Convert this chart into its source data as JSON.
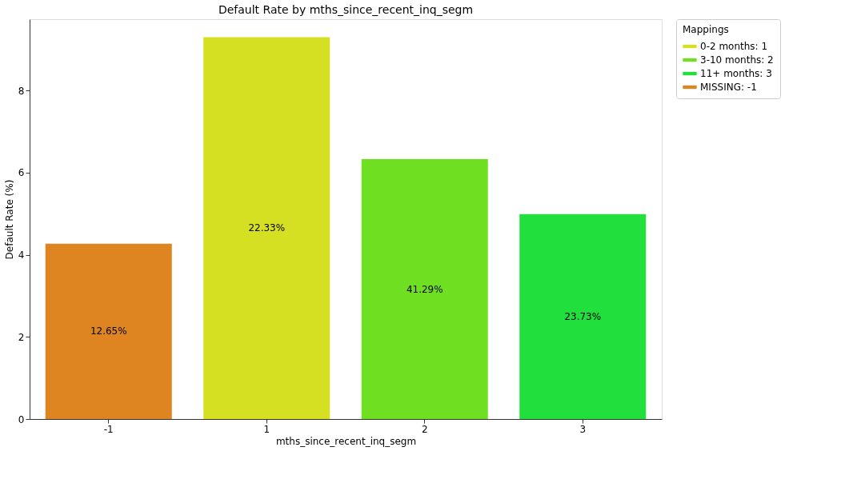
{
  "chart_data": {
    "type": "bar",
    "title": "Default Rate by mths_since_recent_inq_segm",
    "xlabel": "mths_since_recent_inq_segm",
    "ylabel": "Default Rate (%)",
    "legend_title": "Mappings",
    "categories": [
      "-1",
      "1",
      "2",
      "3"
    ],
    "series": [
      {
        "name": "0-2 months: 1",
        "color": "#d4e021",
        "values": [
          null,
          9.3,
          null,
          null
        ]
      },
      {
        "name": "3-10 months: 2",
        "color": "#6ee021",
        "values": [
          null,
          null,
          6.33,
          null
        ]
      },
      {
        "name": "11+ months: 3",
        "color": "#21e03e",
        "values": [
          null,
          null,
          null,
          4.99
        ]
      },
      {
        "name": "MISSING: -1",
        "color": "#de8421",
        "values": [
          4.27,
          null,
          null,
          null
        ]
      }
    ],
    "annotations": [
      "12.65%",
      "22.33%",
      "41.29%",
      "23.73%"
    ],
    "ylim": [
      0,
      9.74
    ],
    "yticks": [
      0,
      2,
      4,
      6,
      8
    ],
    "grid": false,
    "legend": "top right"
  }
}
